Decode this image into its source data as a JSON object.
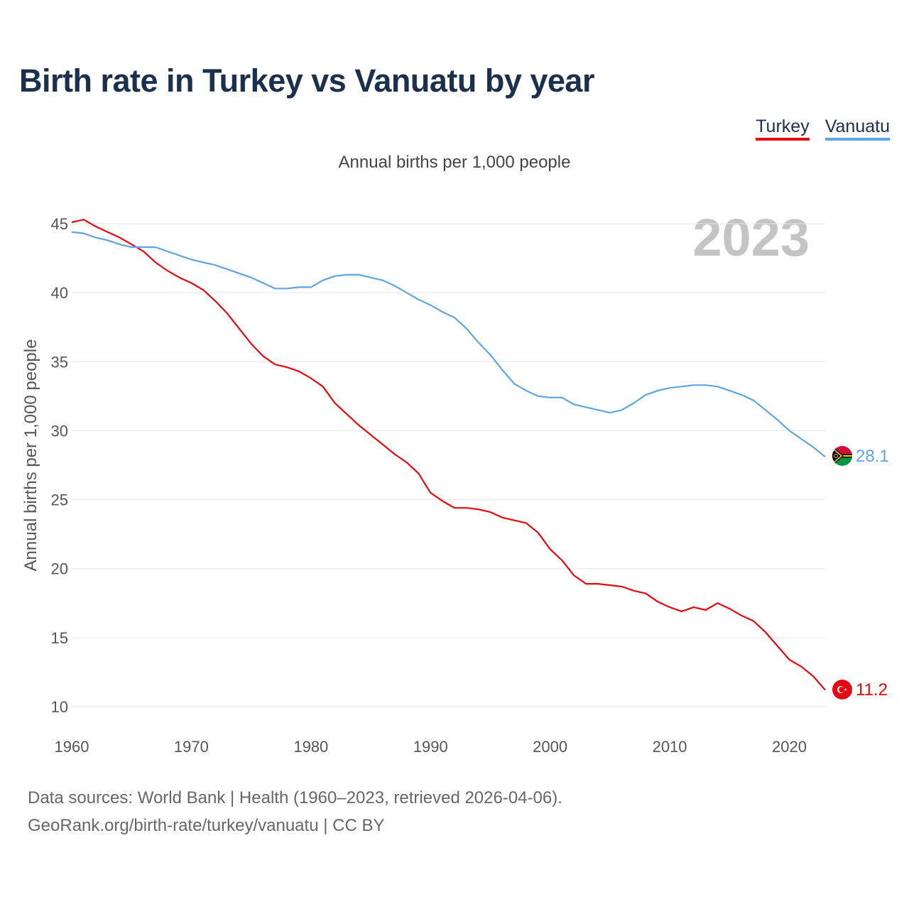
{
  "title": "Birth rate in Turkey vs Vanuatu by year",
  "subtitle": "Annual births per 1,000 people",
  "year_watermark": "2023",
  "legend": [
    {
      "label": "Turkey",
      "color": "#e8080f"
    },
    {
      "label": "Vanuatu",
      "color": "#5ea5e8"
    }
  ],
  "footer": {
    "line1": "Data sources: World Bank | Health (1960–2023, retrieved 2026-04-06).",
    "line2": "GeoRank.org/birth-rate/turkey/vanuatu | CC BY"
  },
  "chart_data": {
    "type": "line",
    "title": "Birth rate in Turkey vs Vanuatu by year",
    "xlabel": "",
    "ylabel": "Annual births per 1,000 people",
    "xlim": [
      1960,
      2023
    ],
    "ylim": [
      10,
      45
    ],
    "grid": true,
    "x_ticks": [
      "1960",
      "1970",
      "1980",
      "1990",
      "2000",
      "2010",
      "2020"
    ],
    "y_ticks": [
      "10",
      "15",
      "20",
      "25",
      "30",
      "35",
      "40",
      "45"
    ],
    "x": [
      1960,
      1961,
      1962,
      1963,
      1964,
      1965,
      1966,
      1967,
      1968,
      1969,
      1970,
      1971,
      1972,
      1973,
      1974,
      1975,
      1976,
      1977,
      1978,
      1979,
      1980,
      1981,
      1982,
      1983,
      1984,
      1985,
      1986,
      1987,
      1988,
      1989,
      1990,
      1991,
      1992,
      1993,
      1994,
      1995,
      1996,
      1997,
      1998,
      1999,
      2000,
      2001,
      2002,
      2003,
      2004,
      2005,
      2006,
      2007,
      2008,
      2009,
      2010,
      2011,
      2012,
      2013,
      2014,
      2015,
      2016,
      2017,
      2018,
      2019,
      2020,
      2021,
      2022,
      2023
    ],
    "series": [
      {
        "name": "Turkey",
        "color": "#e8080f",
        "end_label": "11.2",
        "values": [
          45.1,
          45.3,
          44.8,
          44.4,
          44.0,
          43.5,
          43.0,
          42.2,
          41.6,
          41.1,
          40.7,
          40.2,
          39.4,
          38.5,
          37.4,
          36.3,
          35.4,
          34.8,
          34.6,
          34.3,
          33.8,
          33.2,
          32.0,
          31.2,
          30.4,
          29.7,
          29.0,
          28.3,
          27.7,
          26.9,
          25.5,
          24.9,
          24.4,
          24.4,
          24.3,
          24.1,
          23.7,
          23.5,
          23.3,
          22.6,
          21.4,
          20.6,
          19.5,
          18.9,
          18.9,
          18.8,
          18.7,
          18.4,
          18.2,
          17.6,
          17.2,
          16.9,
          17.2,
          17.0,
          17.5,
          17.1,
          16.6,
          16.2,
          15.4,
          14.4,
          13.4,
          12.9,
          12.2,
          11.2
        ]
      },
      {
        "name": "Vanuatu",
        "color": "#5ea5e8",
        "end_label": "28.1",
        "values": [
          44.4,
          44.3,
          44.0,
          43.8,
          43.5,
          43.3,
          43.3,
          43.3,
          43.0,
          42.7,
          42.4,
          42.2,
          42.0,
          41.7,
          41.4,
          41.1,
          40.7,
          40.3,
          40.3,
          40.4,
          40.4,
          40.9,
          41.2,
          41.3,
          41.3,
          41.1,
          40.9,
          40.5,
          40.0,
          39.5,
          39.1,
          38.6,
          38.2,
          37.4,
          36.4,
          35.5,
          34.4,
          33.4,
          32.9,
          32.5,
          32.4,
          32.4,
          31.9,
          31.7,
          31.5,
          31.3,
          31.5,
          32.0,
          32.6,
          32.9,
          33.1,
          33.2,
          33.3,
          33.3,
          33.2,
          32.9,
          32.6,
          32.2,
          31.5,
          30.8,
          30.0,
          29.4,
          28.8,
          28.1
        ]
      }
    ]
  }
}
